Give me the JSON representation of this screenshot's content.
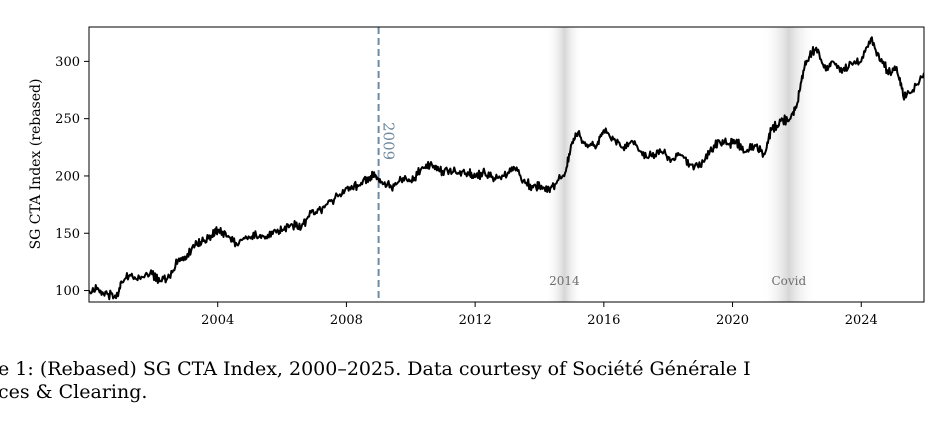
{
  "chart_data": {
    "type": "line",
    "title": "",
    "xlabel": "",
    "ylabel": "SG CTA Index (rebased)",
    "xlim": [
      2000.0,
      2025.95
    ],
    "ylim": [
      90,
      330
    ],
    "x_ticks": [
      2004,
      2008,
      2012,
      2016,
      2020,
      2024
    ],
    "x_tick_labels": [
      "2004",
      "2008",
      "2012",
      "2016",
      "2020",
      "2024"
    ],
    "y_ticks": [
      100,
      150,
      200,
      250,
      300
    ],
    "y_tick_labels": [
      "100",
      "150",
      "200",
      "250",
      "300"
    ],
    "grid": false,
    "legend": "none",
    "series": [
      {
        "color": "#000000",
        "x": [
          2000.0,
          2000.3,
          2000.6,
          2000.9,
          2001.0,
          2001.3,
          2001.6,
          2001.9,
          2002.2,
          2002.5,
          2002.8,
          2003.0,
          2003.3,
          2003.5,
          2003.8,
          2004.0,
          2004.3,
          2004.6,
          2004.9,
          2005.2,
          2005.5,
          2005.8,
          2006.0,
          2006.3,
          2006.6,
          2006.9,
          2007.2,
          2007.5,
          2007.8,
          2008.1,
          2008.4,
          2008.7,
          2008.9,
          2009.1,
          2009.4,
          2009.7,
          2010.0,
          2010.3,
          2010.6,
          2010.9,
          2011.2,
          2011.5,
          2011.8,
          2012.0,
          2012.3,
          2012.6,
          2012.9,
          2013.2,
          2013.5,
          2013.8,
          2014.0,
          2014.3,
          2014.5,
          2014.8,
          2015.0,
          2015.2,
          2015.5,
          2015.8,
          2016.0,
          2016.3,
          2016.6,
          2016.9,
          2017.2,
          2017.5,
          2017.8,
          2018.1,
          2018.4,
          2018.7,
          2019.0,
          2019.3,
          2019.6,
          2019.9,
          2020.1,
          2020.4,
          2020.7,
          2021.0,
          2021.2,
          2021.5,
          2021.8,
          2022.0,
          2022.2,
          2022.4,
          2022.6,
          2022.9,
          2023.1,
          2023.4,
          2023.7,
          2024.0,
          2024.3,
          2024.6,
          2024.9,
          2025.1,
          2025.3,
          2025.6,
          2025.95
        ],
        "y": [
          100,
          101,
          97,
          95,
          108,
          113,
          110,
          115,
          108,
          112,
          128,
          127,
          140,
          142,
          148,
          153,
          147,
          140,
          146,
          148,
          147,
          152,
          152,
          158,
          155,
          168,
          170,
          178,
          184,
          190,
          192,
          199,
          201,
          195,
          190,
          197,
          196,
          205,
          210,
          204,
          205,
          202,
          203,
          199,
          203,
          198,
          200,
          208,
          196,
          190,
          192,
          188,
          193,
          203,
          228,
          238,
          225,
          228,
          240,
          232,
          225,
          230,
          218,
          217,
          221,
          214,
          218,
          210,
          208,
          222,
          230,
          228,
          230,
          221,
          227,
          219,
          240,
          248,
          250,
          262,
          292,
          305,
          312,
          292,
          300,
          290,
          298,
          300,
          320,
          300,
          290,
          295,
          270,
          275,
          290
        ]
      }
    ],
    "vline": {
      "x": 2009.0,
      "label": "2009",
      "color": "#6f8aa0"
    },
    "shaded_regions": [
      {
        "x_start": 2014.2,
        "x_end": 2015.35,
        "label": "2014"
      },
      {
        "x_start": 2020.9,
        "x_end": 2022.6,
        "label": "Covid"
      }
    ]
  },
  "caption": {
    "line1": "e 1:  (Rebased) SG CTA Index, 2000–2025.  Data courtesy of Société Générale I",
    "line2": "ces & Clearing."
  }
}
